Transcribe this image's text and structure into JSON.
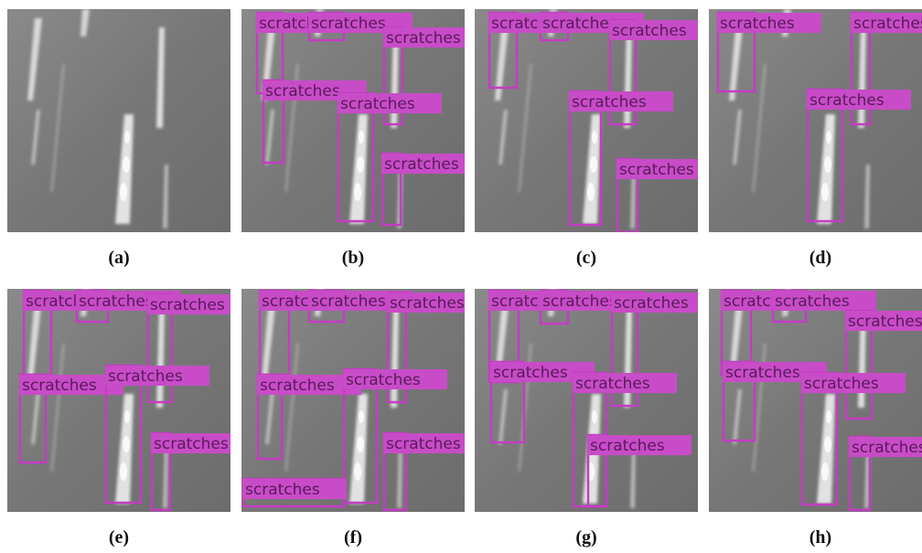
{
  "panels": [
    {
      "caption": "(a)",
      "detections": []
    },
    {
      "caption": "(b)",
      "detections": [
        {
          "label": "scratches"
        },
        {
          "label": "scratches"
        },
        {
          "label": "scratches"
        },
        {
          "label": "scratches"
        },
        {
          "label": "scratches"
        },
        {
          "label": "scratches"
        }
      ]
    },
    {
      "caption": "(c)",
      "detections": [
        {
          "label": "scratches"
        },
        {
          "label": "scratches"
        },
        {
          "label": "scratches"
        },
        {
          "label": "scratches"
        },
        {
          "label": "scratches"
        }
      ]
    },
    {
      "caption": "(d)",
      "detections": [
        {
          "label": "scratches"
        },
        {
          "label": "scratches"
        },
        {
          "label": "scratches"
        }
      ]
    },
    {
      "caption": "(e)",
      "detections": [
        {
          "label": "scratches"
        },
        {
          "label": "scratches"
        },
        {
          "label": "scratches"
        },
        {
          "label": "scratches"
        },
        {
          "label": "scratches"
        },
        {
          "label": "scratches"
        }
      ]
    },
    {
      "caption": "(f)",
      "detections": [
        {
          "label": "scratches"
        },
        {
          "label": "scratches"
        },
        {
          "label": "scratches"
        },
        {
          "label": "scratches"
        },
        {
          "label": "scratches"
        },
        {
          "label": "scratches"
        },
        {
          "label": "scratches"
        }
      ]
    },
    {
      "caption": "(g)",
      "detections": [
        {
          "label": "scratches"
        },
        {
          "label": "scratches"
        },
        {
          "label": "scratches"
        },
        {
          "label": "scratches"
        },
        {
          "label": "scratches"
        },
        {
          "label": "scratches"
        }
      ]
    },
    {
      "caption": "(h)",
      "detections": [
        {
          "label": "scratches"
        },
        {
          "label": "scratches"
        },
        {
          "label": "scratches"
        },
        {
          "label": "scratches"
        },
        {
          "label": "scratches"
        },
        {
          "label": "scratches"
        }
      ]
    }
  ]
}
